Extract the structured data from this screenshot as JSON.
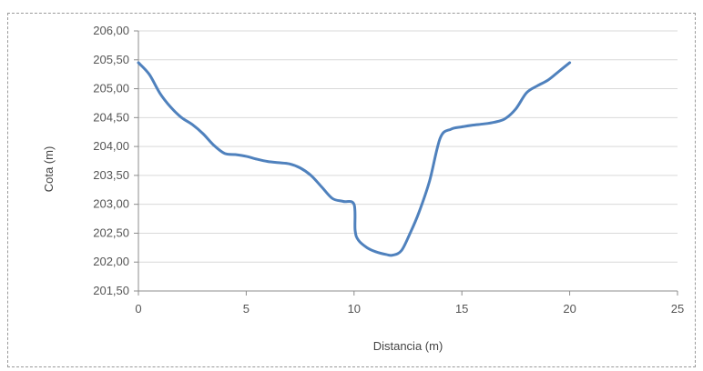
{
  "chart_data": {
    "type": "line",
    "xlabel": "Distancia (m)",
    "ylabel": "Cota (m)",
    "xlim": [
      0,
      25
    ],
    "ylim": [
      201.5,
      206.0
    ],
    "x_ticks": [
      "0",
      "5",
      "10",
      "15",
      "20",
      "25"
    ],
    "y_ticks": [
      "201,50",
      "202,00",
      "202,50",
      "203,00",
      "203,50",
      "204,00",
      "204,50",
      "205,00",
      "205,50",
      "206,00"
    ],
    "grid": "horizontal",
    "legend": "none",
    "series_color": "#4f81bd",
    "series": [
      {
        "x": [
          0,
          0.5,
          1,
          1.5,
          2,
          2.5,
          3,
          3.5,
          4,
          4.5,
          5,
          5.5,
          6,
          6.5,
          7,
          7.5,
          8,
          8.5,
          9,
          9.5,
          10,
          10.05,
          10.2,
          10.6,
          11,
          11.5,
          11.8,
          12.2,
          12.6,
          13,
          13.5,
          14,
          14.5,
          15,
          15.5,
          16,
          16.5,
          17,
          17.5,
          18,
          18.5,
          19,
          19.5,
          20
        ],
        "y": [
          205.45,
          205.25,
          204.92,
          204.68,
          204.5,
          204.38,
          204.22,
          204.02,
          203.88,
          203.86,
          203.83,
          203.78,
          203.74,
          203.72,
          203.7,
          203.63,
          203.5,
          203.3,
          203.1,
          203.05,
          203.0,
          202.55,
          202.38,
          202.25,
          202.18,
          202.13,
          202.12,
          202.2,
          202.5,
          202.85,
          203.4,
          204.15,
          204.3,
          204.34,
          204.37,
          204.39,
          204.42,
          204.48,
          204.65,
          204.93,
          205.05,
          205.15,
          205.3,
          205.45
        ]
      }
    ]
  }
}
